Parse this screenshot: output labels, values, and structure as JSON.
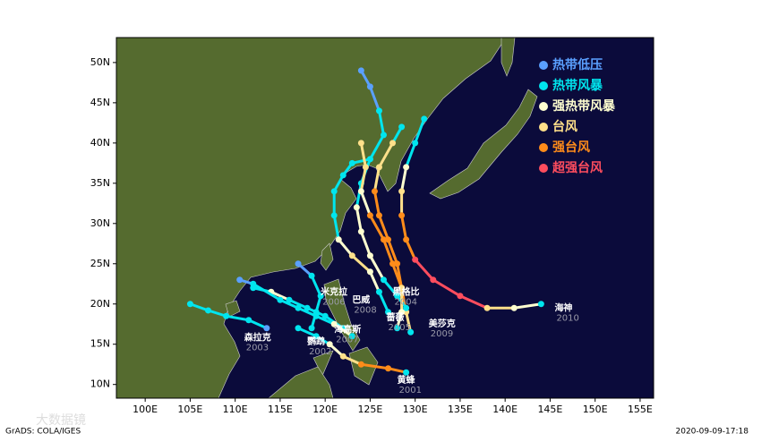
{
  "map": {
    "xlim": [
      96.8,
      156.5
    ],
    "ylim": [
      8.3,
      53.1
    ],
    "xticks": [
      {
        "value": 100,
        "label": "100E"
      },
      {
        "value": 105,
        "label": "105E"
      },
      {
        "value": 110,
        "label": "110E"
      },
      {
        "value": 115,
        "label": "115E"
      },
      {
        "value": 120,
        "label": "120E"
      },
      {
        "value": 125,
        "label": "125E"
      },
      {
        "value": 130,
        "label": "130E"
      },
      {
        "value": 135,
        "label": "135E"
      },
      {
        "value": 140,
        "label": "140E"
      },
      {
        "value": 145,
        "label": "145E"
      },
      {
        "value": 150,
        "label": "150E"
      },
      {
        "value": 155,
        "label": "155E"
      }
    ],
    "yticks": [
      {
        "value": 10,
        "label": "10N"
      },
      {
        "value": 15,
        "label": "15N"
      },
      {
        "value": 20,
        "label": "20N"
      },
      {
        "value": 25,
        "label": "25N"
      },
      {
        "value": 30,
        "label": "30N"
      },
      {
        "value": 35,
        "label": "35N"
      },
      {
        "value": 40,
        "label": "40N"
      },
      {
        "value": 45,
        "label": "45N"
      },
      {
        "value": 50,
        "label": "50N"
      }
    ],
    "legend": [
      {
        "label": "热带低压",
        "color": "#5aa0ff"
      },
      {
        "label": "热带风暴",
        "color": "#00e5ee"
      },
      {
        "label": "强热带风暴",
        "color": "#ffffd0"
      },
      {
        "label": "台风",
        "color": "#ffe08a"
      },
      {
        "label": "强台风",
        "color": "#ff8c1a"
      },
      {
        "label": "超强台风",
        "color": "#ff4d5e"
      }
    ],
    "storms": [
      {
        "name": "海神",
        "year": "2010",
        "label_at": [
          145.5,
          19.5
        ],
        "points": [
          [
            144,
            20,
            1
          ],
          [
            141,
            19.5,
            2
          ],
          [
            138,
            19.5,
            3
          ],
          [
            135,
            21,
            5
          ],
          [
            132,
            23,
            5
          ],
          [
            130,
            25.5,
            5
          ],
          [
            129,
            28,
            4
          ],
          [
            128.5,
            31,
            4
          ],
          [
            128.5,
            34,
            3
          ],
          [
            129,
            37,
            2
          ],
          [
            130,
            40,
            1
          ],
          [
            131,
            43,
            1
          ]
        ]
      },
      {
        "name": "美莎克",
        "year": "2009",
        "label_at": [
          131.5,
          17.5
        ],
        "points": [
          [
            129.5,
            16.5,
            1
          ],
          [
            129,
            19,
            3
          ],
          [
            128.5,
            22,
            4
          ],
          [
            128,
            25,
            4
          ],
          [
            127,
            28,
            4
          ],
          [
            126,
            31,
            4
          ],
          [
            125.5,
            34,
            4
          ],
          [
            126,
            37,
            3
          ],
          [
            127.5,
            40,
            3
          ],
          [
            128.5,
            42,
            1
          ]
        ]
      },
      {
        "name": "黄蜂",
        "year": "2001",
        "label_at": [
          128,
          10.5
        ],
        "points": [
          [
            129,
            11.5,
            1
          ],
          [
            127,
            12,
            4
          ],
          [
            124,
            12.5,
            4
          ],
          [
            122,
            13.5,
            3
          ],
          [
            120.5,
            15,
            2
          ],
          [
            119,
            16,
            1
          ],
          [
            117,
            17,
            1
          ]
        ]
      },
      {
        "name": "森拉克",
        "year": "2003",
        "label_at": [
          111,
          15.8
        ],
        "points": [
          [
            113.5,
            17,
            0
          ],
          [
            111.5,
            18,
            1
          ],
          [
            109,
            18.5,
            1
          ],
          [
            107,
            19.2,
            1
          ],
          [
            105,
            20,
            1
          ]
        ]
      },
      {
        "name": "巴威",
        "year": "2008",
        "label_at": [
          123,
          20.5
        ],
        "points": [
          [
            129,
            19.5,
            1
          ],
          [
            128,
            21,
            1
          ],
          [
            126.5,
            23,
            1
          ],
          [
            125,
            26,
            2
          ],
          [
            124,
            29,
            2
          ],
          [
            123.5,
            32,
            2
          ],
          [
            124,
            35,
            1
          ],
          [
            125,
            38,
            1
          ],
          [
            126.5,
            41,
            1
          ],
          [
            126,
            44,
            1
          ],
          [
            125,
            47,
            0
          ],
          [
            124,
            49,
            0
          ]
        ]
      },
      {
        "name": "米克拉",
        "year": "2006",
        "label_at": [
          119.5,
          21.5
        ],
        "points": [
          [
            118.5,
            17,
            1
          ],
          [
            119,
            19,
            1
          ],
          [
            119.5,
            21,
            1
          ],
          [
            118.5,
            23.5,
            1
          ],
          [
            117,
            25,
            0
          ]
        ]
      },
      {
        "name": "鹦鹉",
        "year": "2002",
        "label_at": [
          118,
          15.3
        ],
        "points": [
          [
            122,
            17,
            1
          ],
          [
            120,
            18.5,
            1
          ],
          [
            118,
            19.5,
            1
          ],
          [
            116,
            20.5,
            1
          ],
          [
            114,
            21.5,
            2
          ],
          [
            112,
            22,
            1
          ]
        ]
      },
      {
        "name": "海高斯",
        "year": "2007",
        "label_at": [
          121,
          16.8
        ],
        "points": [
          [
            123,
            16,
            1
          ],
          [
            121,
            17.5,
            2
          ],
          [
            119,
            18.5,
            1
          ],
          [
            117,
            19.5,
            1
          ],
          [
            115,
            20.5,
            1
          ],
          [
            112,
            22.5,
            1
          ],
          [
            110.5,
            23,
            0
          ]
        ]
      },
      {
        "name": "黑格比",
        "year": "2004",
        "label_at": [
          127.5,
          21.5
        ],
        "points": [
          [
            127,
            19,
            1
          ],
          [
            126,
            21.5,
            1
          ],
          [
            125,
            24,
            2
          ],
          [
            123,
            26,
            3
          ],
          [
            121.5,
            28,
            2
          ],
          [
            121,
            31,
            1
          ],
          [
            121,
            34,
            1
          ],
          [
            122,
            36,
            1
          ],
          [
            123,
            37.5,
            1
          ],
          [
            125,
            38,
            1
          ]
        ]
      },
      {
        "name": "蔷薇",
        "year": "2005",
        "label_at": [
          126.8,
          18.3
        ],
        "points": [
          [
            128,
            17,
            1
          ],
          [
            128.5,
            19,
            2
          ],
          [
            128.5,
            22,
            3
          ],
          [
            127.5,
            25,
            4
          ],
          [
            126.5,
            28,
            4
          ],
          [
            125,
            31,
            4
          ],
          [
            124,
            34,
            2
          ],
          [
            124.5,
            37,
            3
          ],
          [
            124,
            40,
            3
          ]
        ]
      }
    ],
    "footer_left": "GrADS: COLA/IGES",
    "footer_right": "2020-09-09-17:18",
    "watermark": "大数据镜"
  }
}
